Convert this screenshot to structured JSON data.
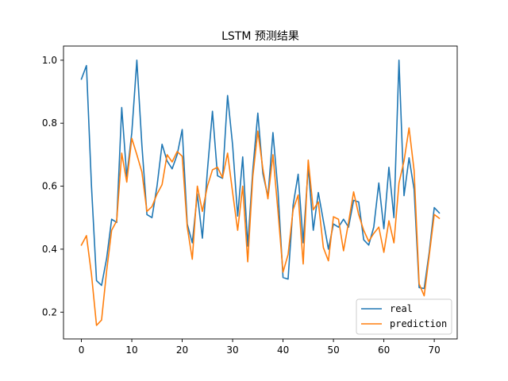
{
  "chart_data": {
    "type": "line",
    "title": "LSTM 预测结果",
    "xlabel": "",
    "ylabel": "",
    "xlim": [
      -3.55,
      74.55
    ],
    "ylim": [
      0.115,
      1.045
    ],
    "xticks": [
      0,
      10,
      20,
      30,
      40,
      50,
      60,
      70
    ],
    "yticks": [
      0.2,
      0.4,
      0.6,
      0.8,
      1.0
    ],
    "ytick_labels": [
      "0.2",
      "0.4",
      "0.6",
      "0.8",
      "1.0"
    ],
    "grid": false,
    "legend_position": "bottom-right",
    "x": [
      0,
      1,
      2,
      3,
      4,
      5,
      6,
      7,
      8,
      9,
      10,
      11,
      12,
      13,
      14,
      15,
      16,
      17,
      18,
      19,
      20,
      21,
      22,
      23,
      24,
      25,
      26,
      27,
      28,
      29,
      30,
      31,
      32,
      33,
      34,
      35,
      36,
      37,
      38,
      39,
      40,
      41,
      42,
      43,
      44,
      45,
      46,
      47,
      48,
      49,
      50,
      51,
      52,
      53,
      54,
      55,
      56,
      57,
      58,
      59,
      60,
      61,
      62,
      63,
      64,
      65,
      66,
      67,
      68,
      69,
      70,
      71
    ],
    "series": [
      {
        "name": "real",
        "color": "#1f77b4",
        "values": [
          0.94,
          0.983,
          0.6,
          0.3,
          0.285,
          0.37,
          0.495,
          0.485,
          0.85,
          0.63,
          0.77,
          1.0,
          0.73,
          0.51,
          0.5,
          0.6,
          0.733,
          0.68,
          0.655,
          0.7,
          0.78,
          0.48,
          0.42,
          0.575,
          0.435,
          0.65,
          0.838,
          0.633,
          0.625,
          0.888,
          0.73,
          0.505,
          0.693,
          0.41,
          0.65,
          0.832,
          0.64,
          0.566,
          0.77,
          0.585,
          0.31,
          0.305,
          0.54,
          0.638,
          0.42,
          0.663,
          0.46,
          0.58,
          0.49,
          0.4,
          0.48,
          0.47,
          0.495,
          0.47,
          0.555,
          0.55,
          0.43,
          0.413,
          0.47,
          0.61,
          0.465,
          0.66,
          0.5,
          1.0,
          0.57,
          0.69,
          0.59,
          0.278,
          0.275,
          0.39,
          0.532,
          0.515
        ]
      },
      {
        "name": "prediction",
        "color": "#ff7f0e",
        "values": [
          0.413,
          0.443,
          0.32,
          0.158,
          0.175,
          0.33,
          0.46,
          0.49,
          0.705,
          0.613,
          0.752,
          0.7,
          0.645,
          0.52,
          0.535,
          0.575,
          0.605,
          0.7,
          0.677,
          0.71,
          0.695,
          0.47,
          0.368,
          0.6,
          0.52,
          0.6,
          0.652,
          0.66,
          0.627,
          0.705,
          0.58,
          0.46,
          0.6,
          0.36,
          0.63,
          0.775,
          0.655,
          0.56,
          0.7,
          0.52,
          0.327,
          0.383,
          0.525,
          0.572,
          0.353,
          0.683,
          0.525,
          0.55,
          0.405,
          0.363,
          0.503,
          0.495,
          0.395,
          0.485,
          0.582,
          0.51,
          0.46,
          0.425,
          0.45,
          0.47,
          0.39,
          0.49,
          0.42,
          0.61,
          0.68,
          0.785,
          0.65,
          0.29,
          0.252,
          0.38,
          0.51,
          0.498
        ]
      }
    ]
  }
}
